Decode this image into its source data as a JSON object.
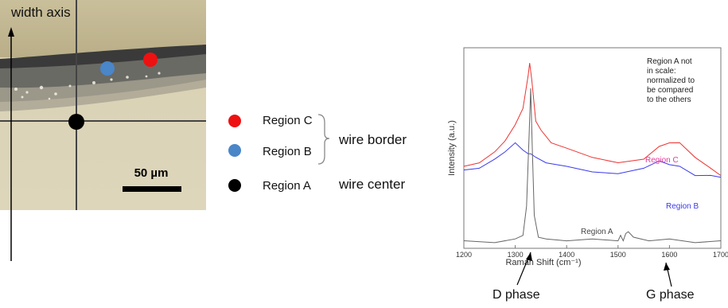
{
  "width_axis_label": "width axis",
  "scale_bar_label": "50 µm",
  "legend": [
    {
      "label": "Region C",
      "color": "#ee1111"
    },
    {
      "label": "Region B",
      "color": "#4a86c8"
    },
    {
      "label": "Region A",
      "color": "#000000"
    }
  ],
  "group_labels": {
    "border": "wire border",
    "center": "wire center"
  },
  "phase_labels": {
    "d": "D phase",
    "g": "G phase"
  },
  "chart_data": {
    "type": "line",
    "xlabel": "Raman Shift (cm⁻¹)",
    "ylabel": "Intensity (a.u.)",
    "xlim": [
      1200,
      1700
    ],
    "xticks": [
      1200,
      1300,
      1400,
      1500,
      1600,
      1700
    ],
    "note": "Region A not in scale: normalized to be compared to the others",
    "series": [
      {
        "name": "Region C",
        "color": "#ee3333",
        "x": [
          1200,
          1230,
          1260,
          1280,
          1300,
          1315,
          1325,
          1328,
          1332,
          1340,
          1350,
          1370,
          1400,
          1450,
          1500,
          1550,
          1580,
          1600,
          1620,
          1650,
          1680,
          1700
        ],
        "y": [
          0.42,
          0.45,
          0.5,
          0.57,
          0.65,
          0.75,
          0.92,
          1.0,
          0.9,
          0.68,
          0.62,
          0.56,
          0.52,
          0.48,
          0.44,
          0.47,
          0.53,
          0.56,
          0.55,
          0.48,
          0.41,
          0.38
        ]
      },
      {
        "name": "Region B",
        "color": "#3a3aee",
        "x": [
          1200,
          1230,
          1260,
          1280,
          1300,
          1315,
          1325,
          1330,
          1340,
          1360,
          1400,
          1450,
          1500,
          1550,
          1580,
          1600,
          1620,
          1650,
          1680,
          1700
        ],
        "y": [
          0.4,
          0.42,
          0.46,
          0.51,
          0.55,
          0.52,
          0.49,
          0.5,
          0.47,
          0.45,
          0.42,
          0.4,
          0.38,
          0.42,
          0.45,
          0.44,
          0.42,
          0.38,
          0.37,
          0.37
        ]
      },
      {
        "name": "Region A",
        "color": "#666666",
        "x": [
          1200,
          1260,
          1300,
          1315,
          1322,
          1327,
          1330,
          1333,
          1337,
          1345,
          1360,
          1400,
          1450,
          1500,
          1505,
          1510,
          1515,
          1520,
          1530,
          1560,
          1600,
          1650,
          1700
        ],
        "y": [
          0.01,
          0.01,
          0.02,
          0.05,
          0.2,
          0.6,
          0.85,
          0.55,
          0.15,
          0.04,
          0.02,
          0.02,
          0.02,
          0.02,
          0.04,
          0.02,
          0.05,
          0.07,
          0.03,
          0.02,
          0.02,
          0.01,
          0.01
        ]
      }
    ]
  }
}
